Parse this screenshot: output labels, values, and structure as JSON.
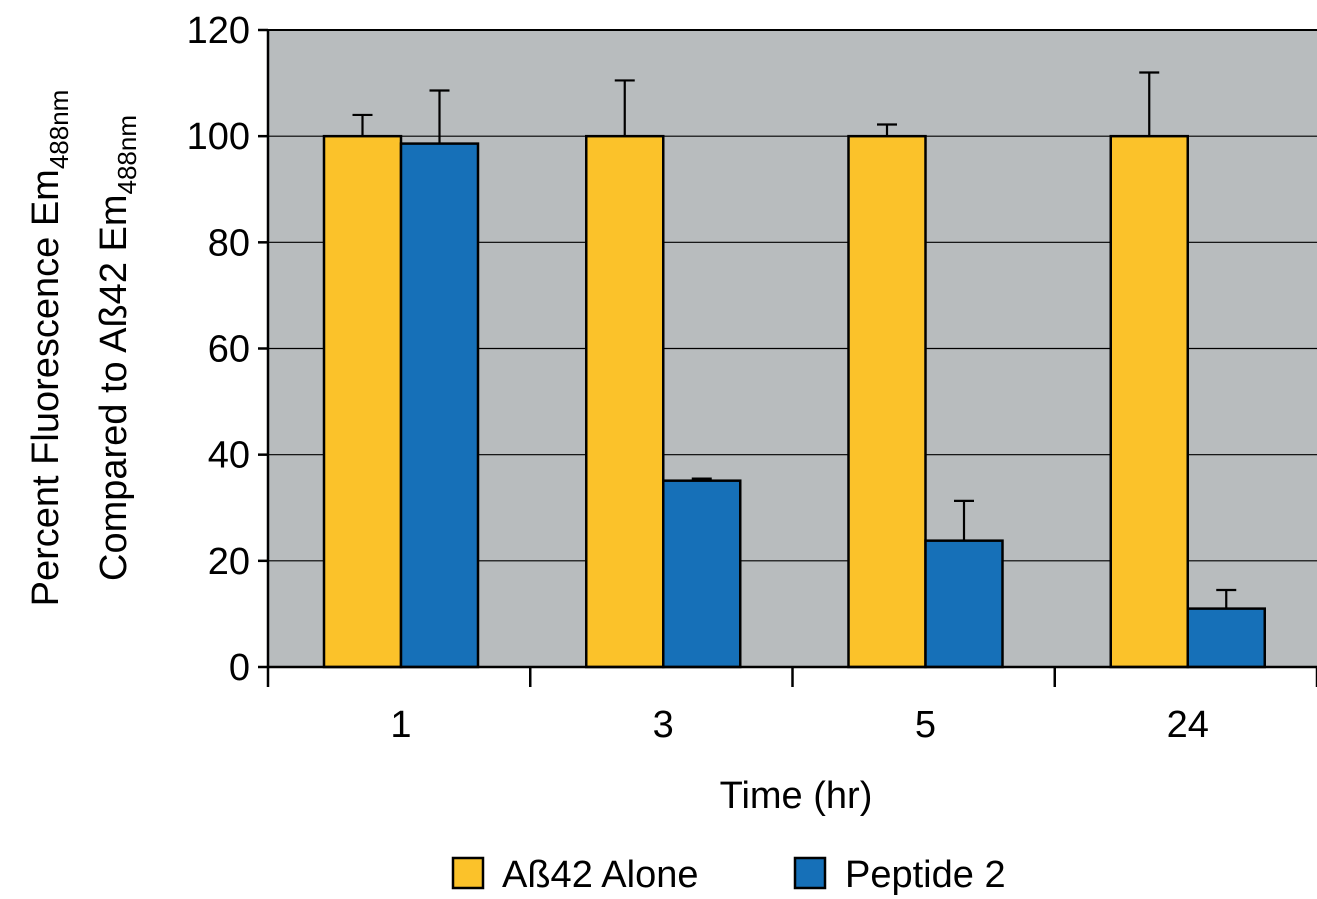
{
  "chart_data": {
    "type": "bar",
    "title": "",
    "xlabel": "Time (hr)",
    "ylabel": {
      "line1_main": "Percent Fluorescence Em",
      "line1_sub": "488nm",
      "line2_main": "Compared to Aß42 Em",
      "line2_sub": "488nm"
    },
    "categories": [
      "1",
      "3",
      "5",
      "24"
    ],
    "ylim": [
      0,
      120
    ],
    "yticks": [
      "0",
      "20",
      "40",
      "60",
      "80",
      "100",
      "120"
    ],
    "grid": true,
    "legend_position": "bottom",
    "plot_background": "#b8bcbe",
    "series": [
      {
        "name": "Aß42 Alone",
        "color": "#fbc22a",
        "values": [
          100,
          100,
          100,
          100
        ],
        "errors": [
          4,
          10.5,
          2.2,
          12
        ]
      },
      {
        "name": "Peptide 2",
        "color": "#1670b8",
        "values": [
          98.6,
          35.1,
          23.8,
          11
        ],
        "errors": [
          10,
          0.4,
          7.5,
          3.5
        ]
      }
    ]
  }
}
